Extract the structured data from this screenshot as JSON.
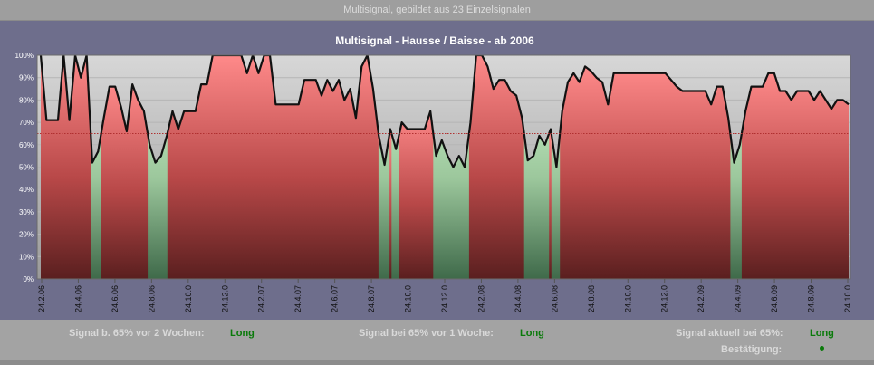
{
  "window": {
    "title": "Multisignal, gebildet aus 23 Einzelsignalen"
  },
  "status": {
    "two_weeks_label": "Signal b. 65% vor 2 Wochen:",
    "two_weeks_value": "Long",
    "one_week_label": "Signal bei 65% vor 1 Woche:",
    "one_week_value": "Long",
    "current_label": "Signal aktuell bei 65%:",
    "current_value": "Long",
    "confirmation_label": "Bestätigung:",
    "confirmation_icon": "green-dot-icon"
  },
  "chart_data": {
    "type": "area",
    "title": "Multisignal - Hausse / Baisse - ab 2006",
    "ylim": [
      0,
      100
    ],
    "threshold": 65,
    "yticks": [
      "0%",
      "10%",
      "20%",
      "30%",
      "40%",
      "50%",
      "60%",
      "70%",
      "80%",
      "90%",
      "100%"
    ],
    "xticks": [
      "24.2.06",
      "24.4.06",
      "24.6.06",
      "24.8.06",
      "24.10.0",
      "24.12.0",
      "24.2.07",
      "24.4.07",
      "24.6.07",
      "24.8.07",
      "24.10.0",
      "24.12.0",
      "24.2.08",
      "24.4.08",
      "24.6.08",
      "24.8.08",
      "24.10.0",
      "24.12.0",
      "24.2.09",
      "24.4.09",
      "24.6.09",
      "24.8.09",
      "24.10.0"
    ],
    "colors": {
      "hausse": "#c9f0c9",
      "baisse": "#f08080",
      "background": "#c8c8c8",
      "threshold": "#b03030"
    },
    "series": [
      {
        "values": [
          100,
          71,
          71,
          71,
          100,
          71,
          100,
          90,
          100,
          52,
          57,
          72,
          86,
          86,
          77,
          66,
          87,
          80,
          75,
          60,
          52,
          55,
          64,
          75,
          67,
          75,
          75,
          75,
          87,
          87,
          100,
          100,
          100,
          100,
          100,
          100,
          92,
          100,
          92,
          100,
          100,
          78,
          78,
          78,
          78,
          78,
          89,
          89,
          89,
          82,
          89,
          84,
          89,
          80,
          85,
          72,
          95,
          100,
          85,
          64,
          51,
          67,
          58,
          70,
          67,
          67,
          67,
          67,
          75,
          55,
          62,
          55,
          50,
          55,
          50,
          70,
          100,
          100,
          95,
          85,
          89,
          89,
          84,
          82,
          72,
          53,
          55,
          64,
          60,
          67,
          50,
          75,
          88,
          92,
          88,
          95,
          93,
          90,
          88,
          78,
          92,
          92,
          92,
          92,
          92,
          92,
          92,
          92,
          92,
          92,
          89,
          86,
          84,
          84,
          84,
          84,
          84,
          78,
          86,
          86,
          72,
          52,
          60,
          75,
          86,
          86,
          86,
          92,
          92,
          84,
          84,
          80,
          84,
          84,
          84,
          80,
          84,
          80,
          76,
          80,
          80,
          78
        ]
      }
    ]
  }
}
